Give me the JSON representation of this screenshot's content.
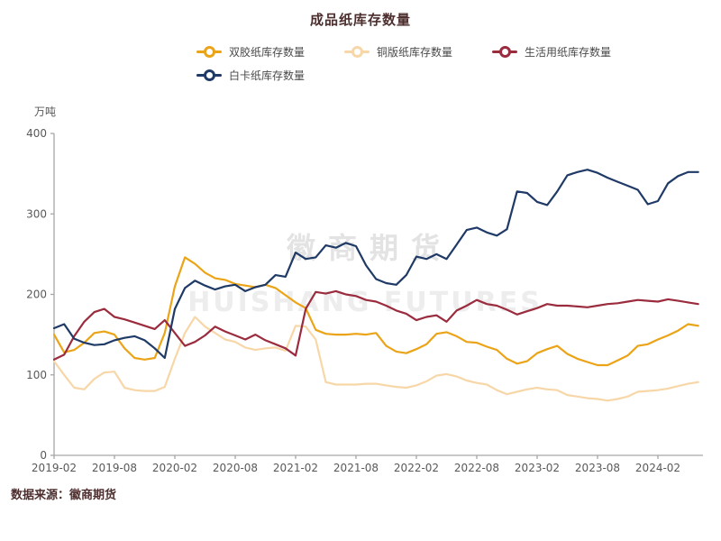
{
  "title": "成品纸库存数量",
  "source_note": "数据来源：徽商期货",
  "watermark": {
    "line1": "徽商期货",
    "line2": "HUISHANG FUTURES"
  },
  "colors": {
    "title_text": "#4d2e2e",
    "axis_text": "#595959",
    "axis_line": "#a6a6a6",
    "watermark": "#e3e3e3"
  },
  "chart_data": {
    "type": "line",
    "title": "成品纸库存数量",
    "xlabel": "",
    "ylabel": "万吨",
    "ylim": [
      0,
      400
    ],
    "yticks": [
      0,
      100,
      200,
      300,
      400
    ],
    "grid": false,
    "legend_position": "top",
    "x_tick_labels": [
      "2019-02",
      "2019-08",
      "2020-02",
      "2020-08",
      "2021-02",
      "2021-08",
      "2022-02",
      "2022-08",
      "2023-02",
      "2023-08",
      "2024-02"
    ],
    "x": [
      "2019-02",
      "2019-03",
      "2019-04",
      "2019-05",
      "2019-06",
      "2019-07",
      "2019-08",
      "2019-09",
      "2019-10",
      "2019-11",
      "2019-12",
      "2020-01",
      "2020-02",
      "2020-03",
      "2020-04",
      "2020-05",
      "2020-06",
      "2020-07",
      "2020-08",
      "2020-09",
      "2020-10",
      "2020-11",
      "2020-12",
      "2021-01",
      "2021-02",
      "2021-03",
      "2021-04",
      "2021-05",
      "2021-06",
      "2021-07",
      "2021-08",
      "2021-09",
      "2021-10",
      "2021-11",
      "2021-12",
      "2022-01",
      "2022-02",
      "2022-03",
      "2022-04",
      "2022-05",
      "2022-06",
      "2022-07",
      "2022-08",
      "2022-09",
      "2022-10",
      "2022-11",
      "2022-12",
      "2023-01",
      "2023-02",
      "2023-03",
      "2023-04",
      "2023-05",
      "2023-06",
      "2023-07",
      "2023-08",
      "2023-09",
      "2023-10",
      "2023-11",
      "2023-12",
      "2024-01",
      "2024-02",
      "2024-03",
      "2024-04",
      "2024-05",
      "2024-06"
    ],
    "series": [
      {
        "name": "双胶纸库存数量",
        "color": "#EBA417",
        "values": [
          150,
          128,
          131,
          140,
          152,
          154,
          150,
          133,
          121,
          119,
          121,
          152,
          210,
          246,
          238,
          227,
          220,
          218,
          213,
          211,
          209,
          212,
          208,
          199,
          190,
          183,
          156,
          151,
          150,
          150,
          151,
          150,
          152,
          136,
          129,
          127,
          132,
          138,
          151,
          153,
          148,
          141,
          140,
          135,
          131,
          120,
          114,
          117,
          127,
          132,
          136,
          126,
          120,
          116,
          112,
          112,
          118,
          124,
          136,
          138,
          144,
          149,
          155,
          163,
          161
        ]
      },
      {
        "name": "铜版纸库存数量",
        "color": "#F7D7A8",
        "values": [
          117,
          100,
          84,
          82,
          95,
          103,
          104,
          84,
          81,
          80,
          80,
          85,
          120,
          152,
          172,
          160,
          152,
          144,
          141,
          134,
          131,
          133,
          134,
          130,
          161,
          160,
          144,
          91,
          88,
          88,
          88,
          89,
          89,
          87,
          85,
          84,
          87,
          92,
          99,
          101,
          98,
          93,
          90,
          88,
          81,
          76,
          79,
          82,
          84,
          82,
          81,
          75,
          73,
          71,
          70,
          68,
          70,
          73,
          79,
          80,
          81,
          83,
          86,
          89,
          91
        ]
      },
      {
        "name": "生活用纸库存数量",
        "color": "#9A2C3E",
        "values": [
          119,
          125,
          148,
          166,
          178,
          182,
          172,
          169,
          165,
          161,
          157,
          168,
          152,
          136,
          141,
          149,
          160,
          154,
          149,
          144,
          150,
          143,
          138,
          133,
          124,
          182,
          203,
          201,
          204,
          200,
          198,
          193,
          191,
          186,
          180,
          176,
          168,
          172,
          174,
          166,
          180,
          186,
          193,
          188,
          186,
          181,
          175,
          179,
          183,
          188,
          186,
          186,
          185,
          184,
          186,
          188,
          189,
          191,
          193,
          192,
          191,
          194,
          192,
          190,
          188
        ]
      },
      {
        "name": "白卡纸库存数量",
        "color": "#1F3A66",
        "values": [
          158,
          163,
          145,
          140,
          137,
          138,
          143,
          146,
          148,
          143,
          133,
          121,
          182,
          208,
          217,
          211,
          206,
          210,
          212,
          204,
          209,
          212,
          224,
          222,
          252,
          244,
          246,
          261,
          258,
          264,
          260,
          236,
          219,
          214,
          212,
          224,
          247,
          244,
          250,
          244,
          262,
          280,
          283,
          277,
          273,
          281,
          328,
          326,
          315,
          311,
          328,
          348,
          352,
          355,
          351,
          345,
          340,
          335,
          330,
          312,
          316,
          338,
          347,
          352,
          352
        ]
      }
    ]
  }
}
